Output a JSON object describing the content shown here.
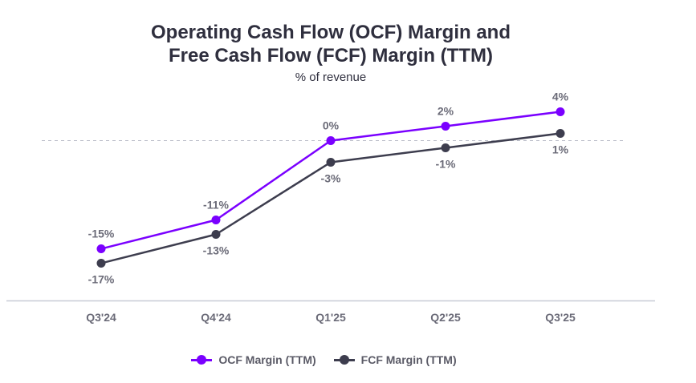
{
  "chart_data": {
    "type": "line",
    "title_line1": "Operating Cash Flow (OCF) Margin and",
    "title_line2": "Free Cash Flow (FCF) Margin (TTM)",
    "subtitle": "% of revenue",
    "categories": [
      "Q3'24",
      "Q4'24",
      "Q1'25",
      "Q2'25",
      "Q3'25"
    ],
    "series": [
      {
        "name": "OCF Margin (TTM)",
        "color": "#7a00ff",
        "values": [
          -15,
          -11,
          0,
          2,
          4
        ],
        "labels": [
          "-15%",
          "-11%",
          "0%",
          "2%",
          "4%"
        ],
        "label_position": "above"
      },
      {
        "name": "FCF Margin (TTM)",
        "color": "#3d3d4e",
        "values": [
          -17,
          -13,
          -3,
          -1,
          1
        ],
        "labels": [
          "-17%",
          "-13%",
          "-3%",
          "-1%",
          "1%"
        ],
        "label_position": "below"
      }
    ],
    "ylim": [
      -22,
      6
    ],
    "zero_line": "dashed",
    "legend": "bottom-center"
  }
}
